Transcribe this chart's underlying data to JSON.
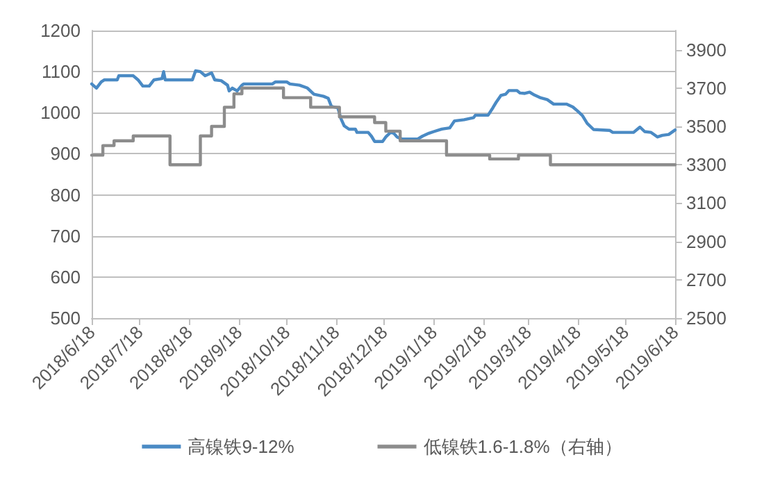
{
  "chart_data": {
    "type": "line",
    "xlim": [
      "2018-06-18",
      "2019-06-18"
    ],
    "xticks": [
      {
        "value": "2018-06-18",
        "label": "2018/6/18"
      },
      {
        "value": "2018-07-18",
        "label": "2018/7/18"
      },
      {
        "value": "2018-08-18",
        "label": "2018/8/18"
      },
      {
        "value": "2018-09-18",
        "label": "2018/9/18"
      },
      {
        "value": "2018-10-18",
        "label": "2018/10/18"
      },
      {
        "value": "2018-11-18",
        "label": "2018/11/18"
      },
      {
        "value": "2018-12-18",
        "label": "2018/12/18"
      },
      {
        "value": "2019-01-18",
        "label": "2019/1/18"
      },
      {
        "value": "2019-02-18",
        "label": "2019/2/18"
      },
      {
        "value": "2019-03-18",
        "label": "2019/3/18"
      },
      {
        "value": "2019-04-18",
        "label": "2019/4/18"
      },
      {
        "value": "2019-05-18",
        "label": "2019/5/18"
      },
      {
        "value": "2019-06-18",
        "label": "2019/6/18"
      }
    ],
    "ylim": [
      500,
      1200
    ],
    "yticks": [
      500,
      600,
      700,
      800,
      900,
      1000,
      1100,
      1200
    ],
    "y2lim": [
      2500,
      4000
    ],
    "y2ticks": [
      2500,
      2700,
      2900,
      3100,
      3300,
      3500,
      3700,
      3900
    ],
    "grid": "y",
    "legend": "bottom",
    "marker": "none",
    "series": [
      {
        "name": "高镍铁9-12%",
        "color": "#4a8ac4",
        "x": [
          "2018-06-18",
          "2018-06-21",
          "2018-06-24",
          "2018-06-26",
          "2018-07-04",
          "2018-07-05",
          "2018-07-14",
          "2018-07-17",
          "2018-07-20",
          "2018-07-24",
          "2018-07-27",
          "2018-08-01",
          "2018-08-02",
          "2018-08-03",
          "2018-08-20",
          "2018-08-22",
          "2018-08-25",
          "2018-08-28",
          "2018-09-01",
          "2018-09-03",
          "2018-09-07",
          "2018-09-11",
          "2018-09-12",
          "2018-09-14",
          "2018-09-17",
          "2018-09-20",
          "2018-09-21",
          "2018-10-09",
          "2018-10-11",
          "2018-10-18",
          "2018-10-20",
          "2018-10-26",
          "2018-10-31",
          "2018-11-04",
          "2018-11-10",
          "2018-11-13",
          "2018-11-15",
          "2018-11-19",
          "2018-11-21",
          "2018-11-23",
          "2018-11-26",
          "2018-11-30",
          "2018-12-01",
          "2018-12-08",
          "2018-12-10",
          "2018-12-12",
          "2018-12-17",
          "2018-12-19",
          "2018-12-22",
          "2018-12-24",
          "2018-12-26",
          "2018-12-29",
          "2019-01-08",
          "2019-01-11",
          "2019-01-15",
          "2019-01-18",
          "2019-01-23",
          "2019-01-28",
          "2019-01-31",
          "2019-02-06",
          "2019-02-12",
          "2019-02-13",
          "2019-02-21",
          "2019-02-24",
          "2019-02-26",
          "2019-03-01",
          "2019-03-04",
          "2019-03-06",
          "2019-03-11",
          "2019-03-13",
          "2019-03-16",
          "2019-03-19",
          "2019-03-22",
          "2019-03-26",
          "2019-03-30",
          "2019-04-03",
          "2019-04-11",
          "2019-04-15",
          "2019-04-18",
          "2019-04-21",
          "2019-04-24",
          "2019-04-28",
          "2019-05-08",
          "2019-05-10",
          "2019-05-23",
          "2019-05-27",
          "2019-05-30",
          "2019-06-03",
          "2019-06-07",
          "2019-06-10",
          "2019-06-14",
          "2019-06-18"
        ],
        "values": [
          1070,
          1060,
          1075,
          1080,
          1080,
          1090,
          1090,
          1080,
          1065,
          1065,
          1080,
          1083,
          1100,
          1080,
          1080,
          1102,
          1100,
          1090,
          1097,
          1080,
          1078,
          1067,
          1053,
          1060,
          1053,
          1067,
          1070,
          1070,
          1075,
          1075,
          1070,
          1067,
          1060,
          1045,
          1040,
          1035,
          1015,
          1012,
          985,
          968,
          960,
          960,
          952,
          952,
          943,
          930,
          930,
          941,
          952,
          950,
          941,
          936,
          936,
          943,
          950,
          954,
          960,
          963,
          980,
          983,
          988,
          994,
          994,
          1012,
          1025,
          1042,
          1045,
          1054,
          1054,
          1048,
          1047,
          1050,
          1043,
          1036,
          1032,
          1021,
          1021,
          1014,
          1004,
          993,
          974,
          959,
          957,
          952,
          952,
          965,
          954,
          952,
          941,
          945,
          947,
          958
        ]
      },
      {
        "name": "低镍铁1.6-1.8%（右轴）",
        "color": "#8c8c8c",
        "type": "step",
        "axis": "y2",
        "x": [
          "2018-06-18",
          "2018-06-25",
          "2018-07-02",
          "2018-07-14",
          "2018-08-06",
          "2018-08-25",
          "2018-09-01",
          "2018-09-09",
          "2018-09-15",
          "2018-09-20",
          "2018-10-16",
          "2018-11-02",
          "2018-11-20",
          "2018-12-12",
          "2018-12-19",
          "2018-12-28",
          "2019-01-26",
          "2019-02-22",
          "2019-03-12",
          "2019-04-01",
          "2019-06-18"
        ],
        "values": [
          3350,
          3400,
          3425,
          3450,
          3300,
          3450,
          3500,
          3600,
          3670,
          3700,
          3650,
          3600,
          3550,
          3520,
          3475,
          3425,
          3350,
          3330,
          3350,
          3300,
          3300
        ]
      }
    ]
  }
}
